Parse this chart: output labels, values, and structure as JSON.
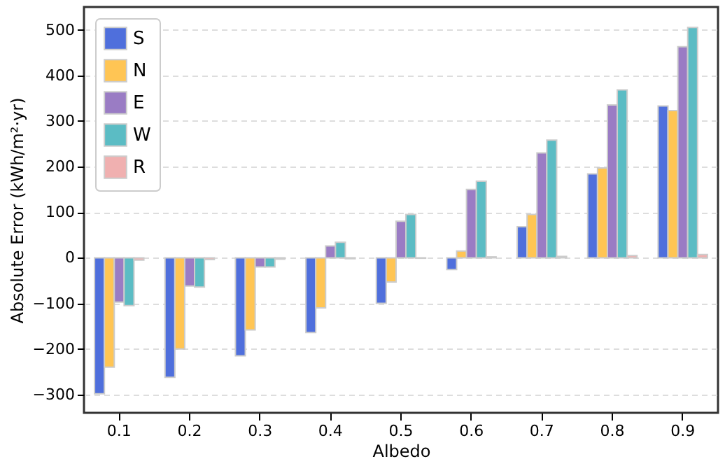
{
  "chart_data": {
    "type": "bar",
    "xlabel": "Albedo",
    "ylabel": "Absolute Error (kWh/m²·yr)",
    "categories": [
      "0.1",
      "0.2",
      "0.3",
      "0.4",
      "0.5",
      "0.6",
      "0.7",
      "0.8",
      "0.9"
    ],
    "series": [
      {
        "name": "S",
        "color": "#4f6fdc",
        "values": [
          -298,
          -262,
          -215,
          -164,
          -100,
          -26,
          68,
          184,
          333
        ]
      },
      {
        "name": "N",
        "color": "#ffc554",
        "values": [
          -240,
          -200,
          -158,
          -110,
          -53,
          15,
          95,
          197,
          323
        ]
      },
      {
        "name": "E",
        "color": "#9a7cc4",
        "values": [
          -97,
          -62,
          -20,
          26,
          80,
          150,
          230,
          335,
          463
        ]
      },
      {
        "name": "W",
        "color": "#5bbcc4",
        "values": [
          -105,
          -64,
          -20,
          34,
          95,
          168,
          258,
          368,
          505
        ]
      },
      {
        "name": "R",
        "color": "#f0b0b0",
        "values": [
          -5,
          -4,
          -3,
          -2,
          -1,
          2,
          3,
          5,
          7
        ]
      }
    ],
    "ylim": [
      -340,
      550
    ],
    "yticks": [
      -300,
      -200,
      -100,
      0,
      100,
      200,
      300,
      400,
      500
    ],
    "grid": "y",
    "legend": "top left"
  }
}
